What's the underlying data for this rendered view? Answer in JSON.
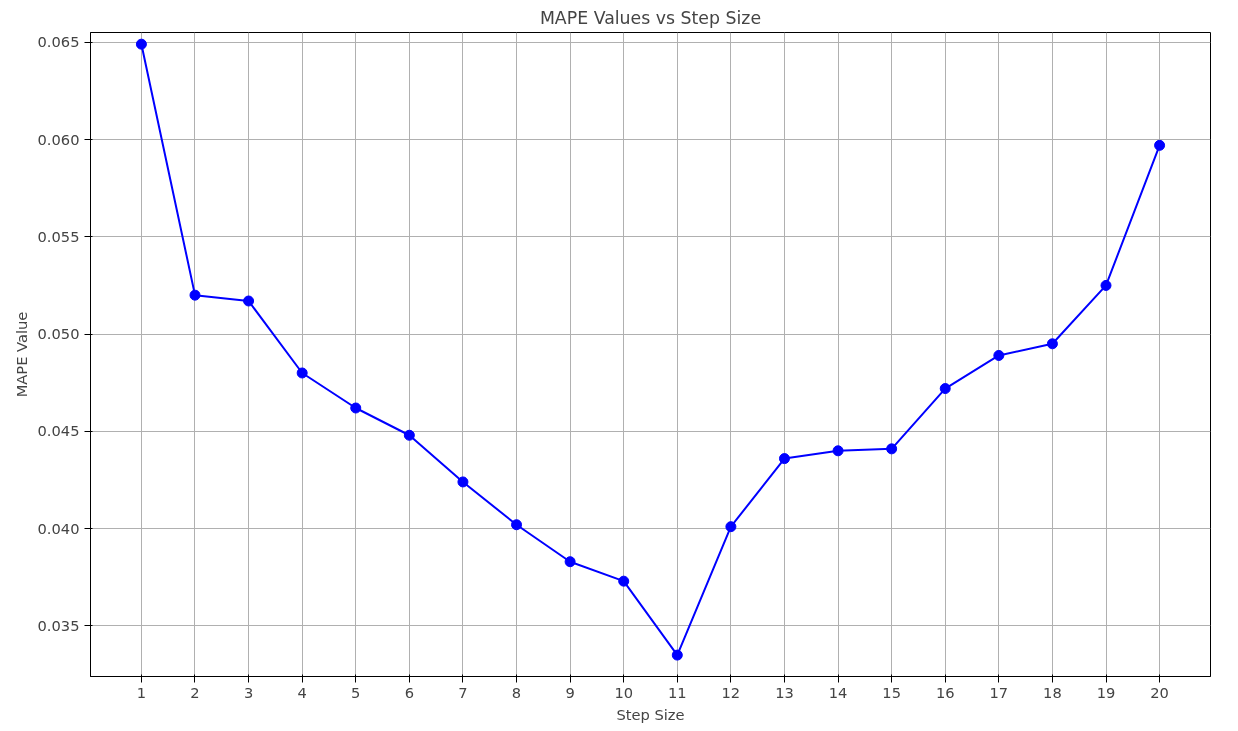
{
  "chart_data": {
    "type": "line",
    "title": "MAPE Values vs Step Size",
    "xlabel": "Step Size",
    "ylabel": "MAPE Value",
    "x": [
      1,
      2,
      3,
      4,
      5,
      6,
      7,
      8,
      9,
      10,
      11,
      12,
      13,
      14,
      15,
      16,
      17,
      18,
      19,
      20
    ],
    "series": [
      {
        "color": "#0000ff",
        "values": [
          0.0649,
          0.052,
          0.0517,
          0.048,
          0.0462,
          0.0448,
          0.0424,
          0.0402,
          0.0383,
          0.0373,
          0.0335,
          0.0401,
          0.0436,
          0.044,
          0.0441,
          0.0472,
          0.0489,
          0.0495,
          0.0525,
          0.0597
        ]
      }
    ],
    "xlim": [
      0.05,
      20.95
    ],
    "ylim": [
      0.0324,
      0.0655
    ],
    "xticks": [
      1,
      2,
      3,
      4,
      5,
      6,
      7,
      8,
      9,
      10,
      11,
      12,
      13,
      14,
      15,
      16,
      17,
      18,
      19,
      20
    ],
    "yticks": [
      {
        "value": 0.035,
        "label": "0.035"
      },
      {
        "value": 0.04,
        "label": "0.040"
      },
      {
        "value": 0.045,
        "label": "0.045"
      },
      {
        "value": 0.05,
        "label": "0.050"
      },
      {
        "value": 0.055,
        "label": "0.055"
      },
      {
        "value": 0.06,
        "label": "0.060"
      },
      {
        "value": 0.065,
        "label": "0.065"
      }
    ],
    "grid": true,
    "marker": "circle",
    "line_style": "solid"
  }
}
